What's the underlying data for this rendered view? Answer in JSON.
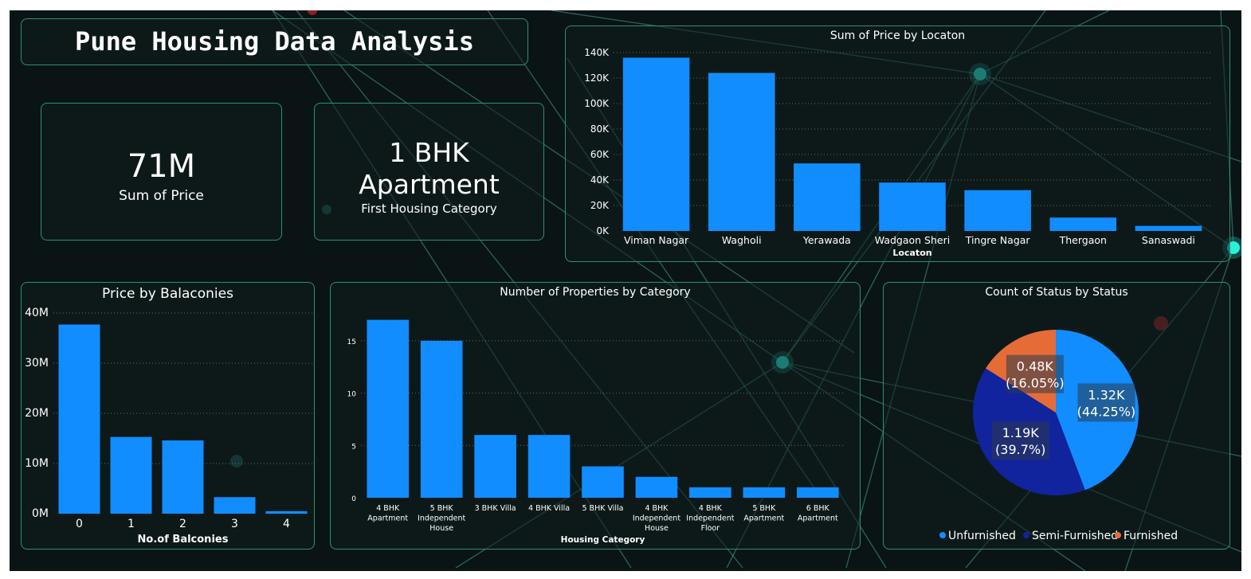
{
  "dashboard": {
    "title": "Pune Housing Data Analysis"
  },
  "kpis": {
    "sum_price_value": "71M",
    "sum_price_label": "Sum of Price",
    "first_category_line1": "1 BHK",
    "first_category_line2": "Apartment",
    "first_category_label": "First Housing Category"
  },
  "colors": {
    "bar": "#118dff",
    "unfurnished": "#118dff",
    "semi_furnished": "#12239e",
    "furnished": "#e66c37",
    "panel_border": "#2f8f72",
    "background": "#0a1414"
  },
  "chart_data": [
    {
      "id": "location",
      "type": "bar",
      "title": "Sum of Price by Locaton",
      "xlabel": "Locaton",
      "ylabel": "",
      "categories": [
        "Viman Nagar",
        "Wagholi",
        "Yerawada",
        "Wadgaon Sheri",
        "Tingre Nagar",
        "Thergaon",
        "Sanaswadi"
      ],
      "values": [
        136000,
        124000,
        53000,
        38000,
        32000,
        10500,
        4000
      ],
      "ylim": [
        0,
        140000
      ],
      "yticks": [
        0,
        20000,
        40000,
        60000,
        80000,
        100000,
        120000,
        140000
      ],
      "ytick_labels": [
        "0K",
        "20K",
        "40K",
        "60K",
        "80K",
        "100K",
        "120K",
        "140K"
      ],
      "grid": true
    },
    {
      "id": "balconies",
      "type": "bar",
      "title": "Price by Balaconies",
      "xlabel": "No.of Balconies",
      "ylabel": "",
      "categories": [
        "0",
        "1",
        "2",
        "3",
        "4"
      ],
      "values": [
        37700000,
        15300000,
        14600000,
        3300000,
        500000
      ],
      "ylim": [
        0,
        40000000
      ],
      "yticks": [
        0,
        10000000,
        20000000,
        30000000,
        40000000
      ],
      "ytick_labels": [
        "0M",
        "10M",
        "20M",
        "30M",
        "40M"
      ],
      "grid": true
    },
    {
      "id": "category",
      "type": "bar",
      "title": "Number of Properties by Category",
      "xlabel": "Housing Category",
      "ylabel": "",
      "categories": [
        [
          "4 BHK",
          "Apartment"
        ],
        [
          "5 BHK",
          "Independent",
          "House"
        ],
        [
          "3 BHK Villa"
        ],
        [
          "4 BHK Villa"
        ],
        [
          "5 BHK Villa"
        ],
        [
          "4 BHK",
          "Independent",
          "House"
        ],
        [
          "4 BHK",
          "Independent",
          "Floor"
        ],
        [
          "5 BHK",
          "Apartment"
        ],
        [
          "6 BHK",
          "Apartment"
        ]
      ],
      "values": [
        17,
        15,
        6,
        6,
        3,
        2,
        1,
        1,
        1
      ],
      "ylim": [
        0,
        17.5
      ],
      "yticks": [
        0,
        5,
        10,
        15
      ],
      "ytick_labels": [
        "0",
        "5",
        "10",
        "15"
      ],
      "grid": true
    },
    {
      "id": "status",
      "type": "pie",
      "title": "Count of Status by Status",
      "slices": [
        {
          "name": "Unfurnished",
          "value": 1320,
          "percent": 44.25,
          "label_value": "1.32K",
          "label_pct": "(44.25%)",
          "color": "#118dff"
        },
        {
          "name": "Semi-Furnished",
          "value": 1190,
          "percent": 39.7,
          "label_value": "1.19K",
          "label_pct": "(39.7%)",
          "color": "#12239e"
        },
        {
          "name": "Furnished",
          "value": 480,
          "percent": 16.05,
          "label_value": "0.48K",
          "label_pct": "(16.05%)",
          "color": "#e66c37"
        }
      ],
      "legend": [
        "Unfurnished",
        "Semi-Furnished",
        "Furnished"
      ],
      "legend_position": "bottom"
    }
  ]
}
